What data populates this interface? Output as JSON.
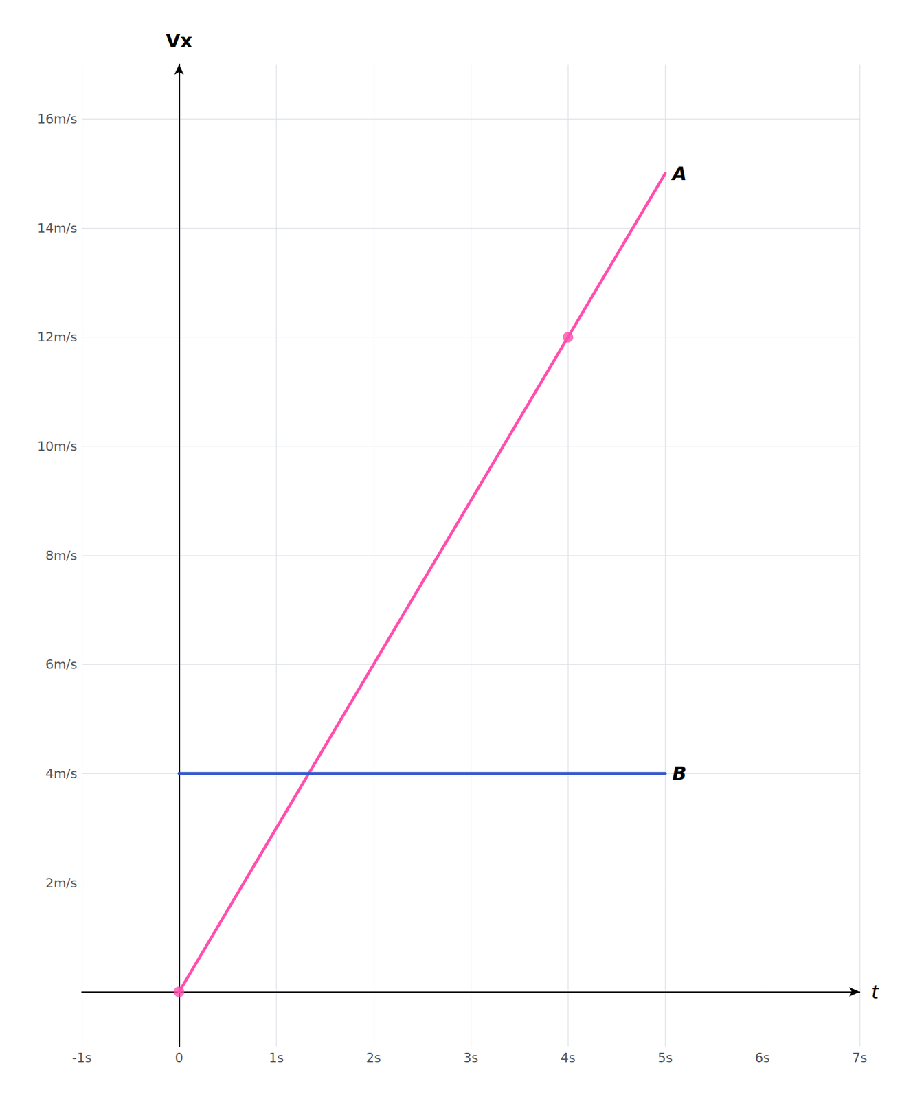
{
  "chart_data": {
    "type": "line",
    "xlabel": "t",
    "ylabel": "Vx",
    "xlim": [
      -1,
      7
    ],
    "ylim": [
      -1,
      17
    ],
    "xticks": [
      {
        "value": -1,
        "label": "-1s"
      },
      0,
      {
        "value": 1,
        "label": "1s"
      },
      {
        "value": 2,
        "label": "2s"
      },
      {
        "value": 3,
        "label": "3s"
      },
      {
        "value": 4,
        "label": "4s"
      },
      {
        "value": 5,
        "label": "5s"
      },
      {
        "value": 6,
        "label": "6s"
      },
      {
        "value": 7,
        "label": "7s"
      }
    ],
    "yticks": [
      {
        "value": 0,
        "label": ""
      },
      {
        "value": 2,
        "label": "2m/s"
      },
      {
        "value": 4,
        "label": "4m/s"
      },
      {
        "value": 6,
        "label": "6m/s"
      },
      {
        "value": 8,
        "label": "8m/s"
      },
      {
        "value": 10,
        "label": "10m/s"
      },
      {
        "value": 12,
        "label": "12m/s"
      },
      {
        "value": 14,
        "label": "14m/s"
      },
      {
        "value": 16,
        "label": "16m/s"
      }
    ],
    "grid": true,
    "series": [
      {
        "name": "A",
        "color": "#FF4FAE",
        "x": [
          0,
          5
        ],
        "values": [
          0,
          15
        ]
      },
      {
        "name": "B",
        "color": "#3355CC",
        "x": [
          0,
          5
        ],
        "values": [
          4,
          4
        ]
      },
      {
        "type": "scatter",
        "color": "#FF4FAE",
        "marker": "circle",
        "x": [
          0,
          4
        ],
        "values": [
          0,
          12
        ]
      }
    ]
  }
}
